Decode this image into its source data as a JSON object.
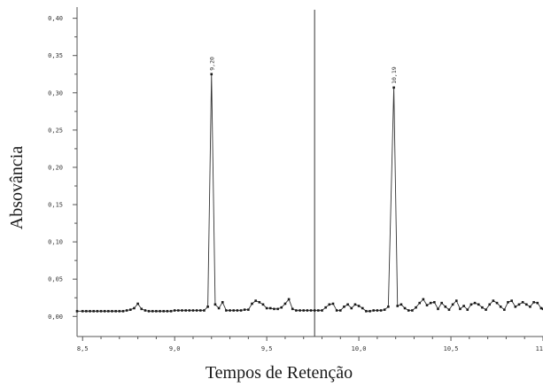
{
  "chart_data": {
    "type": "line",
    "title": "",
    "xlabel": "Tempos de Retenção",
    "ylabel": "Absovância",
    "xlim": [
      8.47,
      11.0
    ],
    "ylim": [
      -0.027,
      0.415
    ],
    "x_ticks": [
      {
        "value": 8.5,
        "label": "8,5"
      },
      {
        "value": 9.0,
        "label": "9,0"
      },
      {
        "value": 9.5,
        "label": "9,5"
      },
      {
        "value": 10.0,
        "label": "10,0"
      },
      {
        "value": 10.5,
        "label": "10,5"
      },
      {
        "value": 11.0,
        "label": "11,0"
      }
    ],
    "y_ticks": [
      {
        "value": 0.0,
        "label": "0,00"
      },
      {
        "value": 0.05,
        "label": "0,05"
      },
      {
        "value": 0.1,
        "label": "0,10"
      },
      {
        "value": 0.15,
        "label": "0,15"
      },
      {
        "value": 0.2,
        "label": "0,20"
      },
      {
        "value": 0.25,
        "label": "0,25"
      },
      {
        "value": 0.3,
        "label": "0,30"
      },
      {
        "value": 0.35,
        "label": "0,35"
      },
      {
        "value": 0.4,
        "label": "0,40"
      }
    ],
    "peak_labels": [
      {
        "x": 9.2,
        "y": 0.325,
        "label": "9,20"
      },
      {
        "x": 10.19,
        "y": 0.307,
        "label": "10,19"
      }
    ],
    "vertical_marker": 9.76,
    "grid": false,
    "series": [
      {
        "color": "#1a1a1a",
        "points": [
          [
            8.47,
            0.007
          ],
          [
            8.5,
            0.007
          ],
          [
            8.52,
            0.007
          ],
          [
            8.54,
            0.007
          ],
          [
            8.56,
            0.007
          ],
          [
            8.58,
            0.007
          ],
          [
            8.6,
            0.007
          ],
          [
            8.62,
            0.007
          ],
          [
            8.64,
            0.007
          ],
          [
            8.66,
            0.007
          ],
          [
            8.68,
            0.007
          ],
          [
            8.7,
            0.007
          ],
          [
            8.72,
            0.007
          ],
          [
            8.74,
            0.008
          ],
          [
            8.76,
            0.009
          ],
          [
            8.78,
            0.011
          ],
          [
            8.8,
            0.017
          ],
          [
            8.82,
            0.01
          ],
          [
            8.84,
            0.008
          ],
          [
            8.86,
            0.007
          ],
          [
            8.88,
            0.007
          ],
          [
            8.9,
            0.007
          ],
          [
            8.92,
            0.007
          ],
          [
            8.94,
            0.007
          ],
          [
            8.96,
            0.007
          ],
          [
            8.98,
            0.007
          ],
          [
            9.0,
            0.008
          ],
          [
            9.02,
            0.008
          ],
          [
            9.04,
            0.008
          ],
          [
            9.06,
            0.008
          ],
          [
            9.08,
            0.008
          ],
          [
            9.1,
            0.008
          ],
          [
            9.12,
            0.008
          ],
          [
            9.14,
            0.008
          ],
          [
            9.16,
            0.008
          ],
          [
            9.18,
            0.013
          ],
          [
            9.2,
            0.325
          ],
          [
            9.22,
            0.016
          ],
          [
            9.24,
            0.011
          ],
          [
            9.26,
            0.019
          ],
          [
            9.28,
            0.008
          ],
          [
            9.3,
            0.008
          ],
          [
            9.32,
            0.008
          ],
          [
            9.34,
            0.008
          ],
          [
            9.36,
            0.008
          ],
          [
            9.38,
            0.009
          ],
          [
            9.4,
            0.009
          ],
          [
            9.42,
            0.017
          ],
          [
            9.44,
            0.021
          ],
          [
            9.46,
            0.019
          ],
          [
            9.48,
            0.016
          ],
          [
            9.5,
            0.011
          ],
          [
            9.52,
            0.011
          ],
          [
            9.54,
            0.01
          ],
          [
            9.56,
            0.01
          ],
          [
            9.58,
            0.012
          ],
          [
            9.6,
            0.017
          ],
          [
            9.62,
            0.023
          ],
          [
            9.64,
            0.01
          ],
          [
            9.66,
            0.008
          ],
          [
            9.68,
            0.008
          ],
          [
            9.7,
            0.008
          ],
          [
            9.72,
            0.008
          ],
          [
            9.74,
            0.008
          ],
          [
            9.76,
            0.008
          ],
          [
            9.78,
            0.008
          ],
          [
            9.8,
            0.008
          ],
          [
            9.82,
            0.012
          ],
          [
            9.84,
            0.016
          ],
          [
            9.86,
            0.017
          ],
          [
            9.88,
            0.008
          ],
          [
            9.9,
            0.008
          ],
          [
            9.92,
            0.013
          ],
          [
            9.94,
            0.016
          ],
          [
            9.96,
            0.011
          ],
          [
            9.98,
            0.016
          ],
          [
            10.0,
            0.014
          ],
          [
            10.02,
            0.011
          ],
          [
            10.04,
            0.007
          ],
          [
            10.06,
            0.007
          ],
          [
            10.08,
            0.008
          ],
          [
            10.1,
            0.008
          ],
          [
            10.12,
            0.008
          ],
          [
            10.14,
            0.009
          ],
          [
            10.16,
            0.013
          ],
          [
            10.19,
            0.307
          ],
          [
            10.21,
            0.014
          ],
          [
            10.23,
            0.016
          ],
          [
            10.25,
            0.011
          ],
          [
            10.27,
            0.008
          ],
          [
            10.29,
            0.008
          ],
          [
            10.31,
            0.012
          ],
          [
            10.33,
            0.018
          ],
          [
            10.35,
            0.023
          ],
          [
            10.37,
            0.015
          ],
          [
            10.39,
            0.018
          ],
          [
            10.41,
            0.019
          ],
          [
            10.43,
            0.01
          ],
          [
            10.45,
            0.018
          ],
          [
            10.47,
            0.013
          ],
          [
            10.49,
            0.009
          ],
          [
            10.51,
            0.016
          ],
          [
            10.53,
            0.021
          ],
          [
            10.55,
            0.01
          ],
          [
            10.57,
            0.014
          ],
          [
            10.59,
            0.009
          ],
          [
            10.61,
            0.016
          ],
          [
            10.63,
            0.018
          ],
          [
            10.65,
            0.016
          ],
          [
            10.67,
            0.012
          ],
          [
            10.69,
            0.009
          ],
          [
            10.71,
            0.016
          ],
          [
            10.73,
            0.021
          ],
          [
            10.75,
            0.018
          ],
          [
            10.77,
            0.013
          ],
          [
            10.79,
            0.009
          ],
          [
            10.81,
            0.019
          ],
          [
            10.83,
            0.021
          ],
          [
            10.85,
            0.013
          ],
          [
            10.87,
            0.016
          ],
          [
            10.89,
            0.019
          ],
          [
            10.91,
            0.016
          ],
          [
            10.93,
            0.013
          ],
          [
            10.95,
            0.019
          ],
          [
            10.97,
            0.018
          ],
          [
            10.99,
            0.011
          ],
          [
            11.0,
            0.01
          ]
        ]
      }
    ]
  }
}
